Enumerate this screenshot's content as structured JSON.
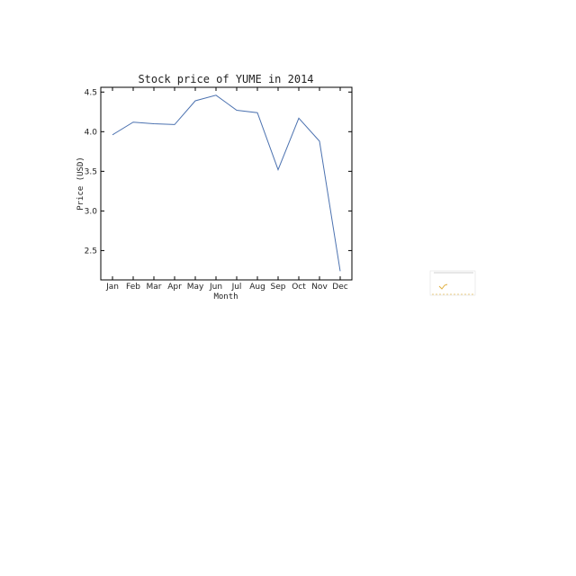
{
  "chart_data": {
    "type": "line",
    "title": "Stock price of YUME in 2014",
    "xlabel": "Month",
    "ylabel": "Price (USD)",
    "categories": [
      "Jan",
      "Feb",
      "Mar",
      "Apr",
      "May",
      "Jun",
      "Jul",
      "Aug",
      "Sep",
      "Oct",
      "Nov",
      "Dec"
    ],
    "values": [
      3.96,
      4.12,
      4.1,
      4.09,
      4.39,
      4.46,
      4.27,
      4.24,
      3.52,
      4.17,
      3.88,
      2.24
    ],
    "ylim": [
      2.13,
      4.56
    ],
    "yticks": [
      "2.5",
      "3.0",
      "3.5",
      "4.0",
      "4.5"
    ],
    "line_color": "#4c72b0",
    "grid": false,
    "legend": "none"
  }
}
